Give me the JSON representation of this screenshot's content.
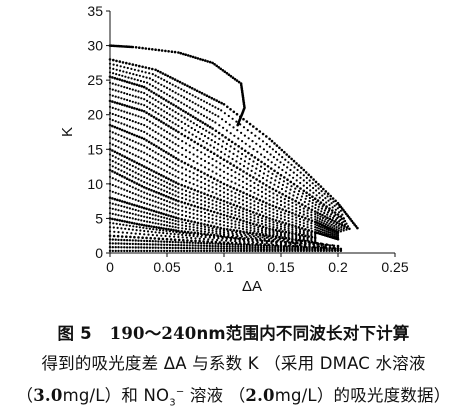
{
  "chart_data": {
    "type": "scatter",
    "title": "",
    "xlabel": "ΔA",
    "ylabel": "K",
    "xlim": [
      0,
      0.25
    ],
    "ylim": [
      0,
      35
    ],
    "xticks": [
      "0",
      "0.05",
      "0.1",
      "0.15",
      "0.2",
      "0.25"
    ],
    "yticks": [
      "0",
      "5",
      "10",
      "15",
      "20",
      "25",
      "30",
      "35"
    ],
    "grid": false,
    "legend": "none",
    "marker_color": "#000000",
    "description_of_data": "dense family of curved point bands forming a triangular envelope from K≈30 at ΔA≈0 down to K≈3 at ΔA≈0.22",
    "envelope_upper": [
      {
        "x": 0.0,
        "y": 30
      },
      {
        "x": 0.05,
        "y": 28
      },
      {
        "x": 0.1,
        "y": 21.5
      },
      {
        "x": 0.13,
        "y": 17.5
      },
      {
        "x": 0.15,
        "y": 14.5
      },
      {
        "x": 0.2,
        "y": 7
      },
      {
        "x": 0.218,
        "y": 3.5
      }
    ],
    "curves": [
      {
        "name": "",
        "points": [
          {
            "x": 0.0,
            "y": 30
          },
          {
            "x": 0.02,
            "y": 29.8
          },
          {
            "x": 0.06,
            "y": 29
          },
          {
            "x": 0.09,
            "y": 27.5
          },
          {
            "x": 0.115,
            "y": 24.5
          },
          {
            "x": 0.118,
            "y": 21
          },
          {
            "x": 0.112,
            "y": 18.5
          }
        ]
      },
      {
        "name": "",
        "points": [
          {
            "x": 0.0,
            "y": 28
          },
          {
            "x": 0.04,
            "y": 26.5
          },
          {
            "x": 0.07,
            "y": 24
          },
          {
            "x": 0.1,
            "y": 21.5
          },
          {
            "x": 0.14,
            "y": 16.5
          },
          {
            "x": 0.17,
            "y": 12
          },
          {
            "x": 0.2,
            "y": 7.2
          },
          {
            "x": 0.217,
            "y": 3.6
          }
        ]
      },
      {
        "name": "",
        "points": [
          {
            "x": 0.0,
            "y": 25.5
          },
          {
            "x": 0.03,
            "y": 24
          },
          {
            "x": 0.06,
            "y": 21
          },
          {
            "x": 0.09,
            "y": 18
          },
          {
            "x": 0.13,
            "y": 13.5
          },
          {
            "x": 0.17,
            "y": 9
          },
          {
            "x": 0.205,
            "y": 5
          }
        ]
      },
      {
        "name": "",
        "points": [
          {
            "x": 0.0,
            "y": 22
          },
          {
            "x": 0.03,
            "y": 20.5
          },
          {
            "x": 0.06,
            "y": 17.5
          },
          {
            "x": 0.1,
            "y": 13.5
          },
          {
            "x": 0.14,
            "y": 9.5
          },
          {
            "x": 0.18,
            "y": 6
          },
          {
            "x": 0.21,
            "y": 3.5
          }
        ]
      },
      {
        "name": "",
        "points": [
          {
            "x": 0.0,
            "y": 18.5
          },
          {
            "x": 0.03,
            "y": 16.5
          },
          {
            "x": 0.06,
            "y": 13.5
          },
          {
            "x": 0.1,
            "y": 10
          },
          {
            "x": 0.14,
            "y": 7
          },
          {
            "x": 0.18,
            "y": 4.5
          },
          {
            "x": 0.2,
            "y": 3
          }
        ]
      },
      {
        "name": "",
        "points": [
          {
            "x": 0.0,
            "y": 15
          },
          {
            "x": 0.03,
            "y": 12.5
          },
          {
            "x": 0.06,
            "y": 10
          },
          {
            "x": 0.1,
            "y": 7.5
          },
          {
            "x": 0.14,
            "y": 5
          },
          {
            "x": 0.18,
            "y": 3
          },
          {
            "x": 0.2,
            "y": 2
          }
        ]
      },
      {
        "name": "",
        "points": [
          {
            "x": 0.0,
            "y": 12
          },
          {
            "x": 0.03,
            "y": 9.5
          },
          {
            "x": 0.06,
            "y": 7.5
          },
          {
            "x": 0.1,
            "y": 5.5
          },
          {
            "x": 0.14,
            "y": 3.5
          },
          {
            "x": 0.18,
            "y": 2.2
          }
        ]
      },
      {
        "name": "",
        "points": [
          {
            "x": 0.0,
            "y": 8
          },
          {
            "x": 0.03,
            "y": 6.5
          },
          {
            "x": 0.06,
            "y": 5
          },
          {
            "x": 0.1,
            "y": 3.5
          },
          {
            "x": 0.14,
            "y": 2.5
          },
          {
            "x": 0.18,
            "y": 1.5
          }
        ]
      },
      {
        "name": "",
        "points": [
          {
            "x": 0.0,
            "y": 5
          },
          {
            "x": 0.03,
            "y": 4
          },
          {
            "x": 0.06,
            "y": 3.2
          },
          {
            "x": 0.1,
            "y": 2.4
          },
          {
            "x": 0.15,
            "y": 1.6
          },
          {
            "x": 0.2,
            "y": 1
          }
        ]
      },
      {
        "name": "",
        "points": [
          {
            "x": 0.0,
            "y": 2.5
          },
          {
            "x": 0.05,
            "y": 2
          },
          {
            "x": 0.1,
            "y": 1.5
          },
          {
            "x": 0.15,
            "y": 1.1
          },
          {
            "x": 0.2,
            "y": 0.7
          }
        ]
      }
    ]
  },
  "caption": {
    "line1_prefix": "图 5",
    "line1_range": "190～240",
    "line1_unit": "nm",
    "line1_rest": "范围内不同波长对下计算",
    "line2": "得到的吸光度差 ΔA 与系数 K （采用 DMAC 水溶液",
    "line3_open": "（",
    "line3_conc1": "3.0",
    "line3_unit1": "mg/L",
    "line3_mid": "）和 NO",
    "line3_sub": "3",
    "line3_sup": "−",
    "line3_mid2": " 溶液 （",
    "line3_conc2": "2.0",
    "line3_unit2": "mg/L",
    "line3_end": "）的吸光度数据）"
  }
}
